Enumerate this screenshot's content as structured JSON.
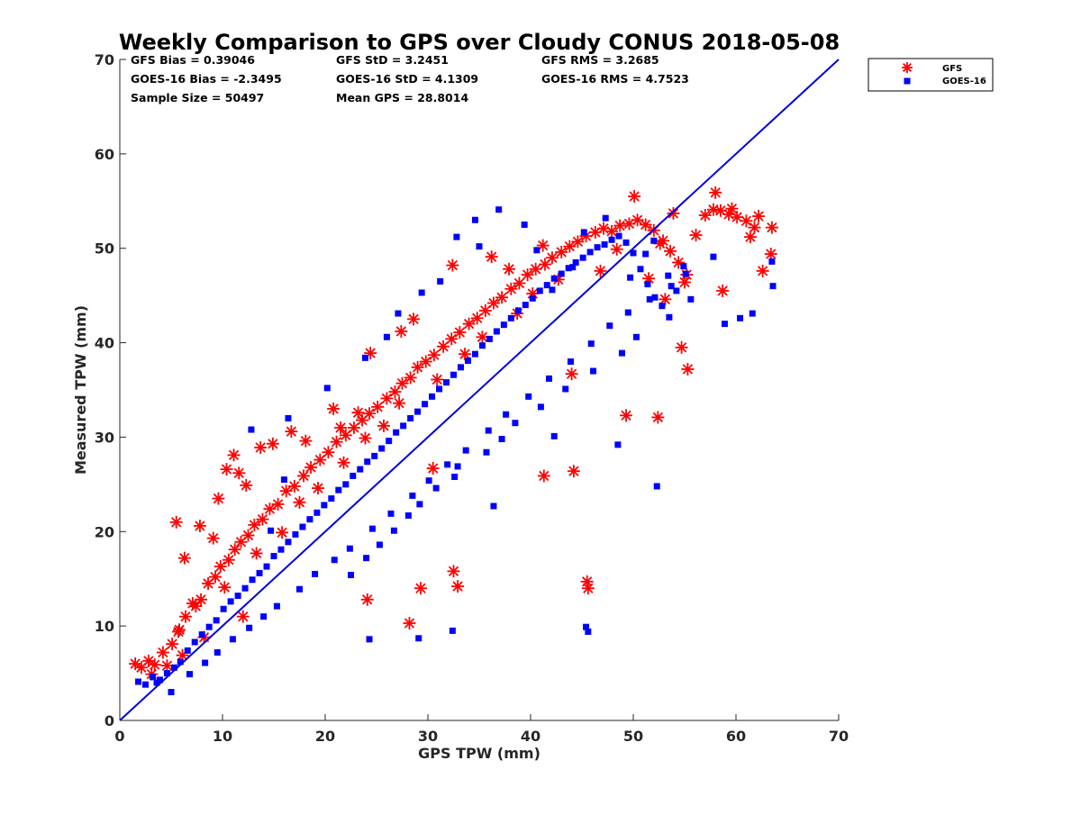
{
  "chart_data": {
    "type": "scatter",
    "title": "Weekly Comparison to GPS over Cloudy CONUS 2018-05-08",
    "xlabel": "GPS TPW (mm)",
    "ylabel": "Measured TPW (mm)",
    "xlim": [
      0,
      70
    ],
    "ylim": [
      0,
      70
    ],
    "xticks": [
      "0",
      "10",
      "20",
      "30",
      "40",
      "50",
      "60",
      "70"
    ],
    "yticks": [
      "0",
      "10",
      "20",
      "30",
      "40",
      "50",
      "60",
      "70"
    ],
    "grid": false,
    "legend_position": "outside top-right",
    "stats": [
      [
        "GFS Bias = 0.39046",
        "GFS StD = 3.2451",
        "GFS RMS = 3.2685"
      ],
      [
        "GOES-16 Bias = -2.3495",
        "GOES-16 StD = 4.1309",
        "GOES-16 RMS = 4.7523"
      ],
      [
        "Sample Size = 50497",
        "Mean GPS = 28.8014",
        ""
      ]
    ],
    "reference_line": {
      "x": [
        0,
        70
      ],
      "y": [
        0,
        70
      ],
      "color": "#0000dd"
    },
    "series": [
      {
        "name": "GFS",
        "marker": "asterisk",
        "color": "#ff0000",
        "x": [
          1.5,
          2.1,
          2.8,
          3.4,
          4.2,
          5.1,
          5.8,
          6.4,
          7.1,
          7.9,
          8.6,
          9.3,
          9.8,
          10.6,
          11.2,
          11.8,
          12.5,
          13.1,
          13.9,
          14.6,
          15.4,
          16.2,
          17.0,
          17.9,
          18.6,
          19.5,
          20.3,
          21.1,
          22.0,
          22.8,
          23.6,
          24.3,
          25.1,
          26.0,
          26.8,
          27.5,
          28.3,
          29.0,
          29.8,
          30.6,
          31.5,
          32.3,
          33.1,
          34.0,
          34.8,
          35.6,
          36.4,
          37.2,
          38.1,
          38.9,
          39.7,
          40.5,
          41.4,
          42.1,
          43.0,
          43.8,
          44.6,
          45.4,
          46.3,
          47.1,
          47.9,
          48.7,
          49.6,
          50.4,
          51.2,
          52.0,
          52.9,
          53.6,
          54.4,
          55.2,
          56.1,
          57.0,
          57.8,
          58.5,
          59.3,
          60.1,
          61.0,
          61.8,
          62.6,
          63.4,
          5.5,
          6.3,
          7.8,
          9.1,
          9.6,
          10.4,
          11.1,
          11.6,
          12.3,
          13.7,
          14.9,
          16.7,
          18.1,
          20.8,
          23.2,
          24.4,
          27.4,
          28.6,
          32.4,
          36.2,
          37.9,
          41.2,
          44.0,
          49.3,
          50.1,
          52.6,
          53.9,
          55.0,
          58.0,
          58.7,
          59.6,
          61.4,
          62.2,
          63.5,
          21.5,
          24.1,
          28.2,
          29.3,
          30.5,
          32.5,
          32.9,
          45.5,
          45.6,
          44.2,
          41.3,
          52.4,
          54.7,
          55.3,
          12.0,
          4.6,
          6.1,
          8.2,
          3.1,
          5.7,
          7.4,
          10.2,
          13.3,
          15.8,
          17.5,
          19.3,
          21.8,
          23.9,
          25.7,
          27.2,
          30.9,
          33.6,
          35.3,
          38.7,
          40.2,
          42.7,
          46.8,
          48.4,
          51.5,
          53.1
        ],
        "y": [
          6.0,
          5.6,
          6.3,
          5.9,
          7.2,
          8.1,
          9.6,
          11.0,
          12.4,
          12.8,
          14.5,
          15.2,
          16.3,
          17.0,
          18.1,
          18.9,
          19.6,
          20.7,
          21.3,
          22.4,
          22.9,
          24.3,
          24.8,
          25.9,
          26.8,
          27.6,
          28.4,
          29.5,
          30.2,
          31.0,
          31.8,
          32.5,
          33.2,
          34.1,
          34.8,
          35.7,
          36.3,
          37.4,
          38.0,
          38.7,
          39.6,
          40.4,
          41.1,
          42.0,
          42.6,
          43.4,
          44.2,
          44.8,
          45.7,
          46.3,
          47.2,
          47.8,
          48.3,
          49.0,
          49.6,
          50.2,
          50.7,
          51.3,
          51.7,
          52.1,
          51.8,
          52.4,
          52.6,
          53.0,
          52.5,
          51.9,
          50.8,
          49.7,
          48.5,
          47.2,
          51.4,
          53.5,
          54.1,
          54.0,
          53.6,
          53.3,
          52.9,
          52.2,
          47.6,
          49.4,
          21.0,
          17.2,
          20.6,
          19.3,
          23.5,
          26.6,
          28.1,
          26.2,
          24.9,
          28.9,
          29.3,
          30.6,
          29.6,
          33.0,
          32.6,
          38.9,
          41.2,
          42.5,
          48.2,
          49.1,
          47.8,
          50.3,
          36.7,
          32.3,
          55.5,
          50.5,
          53.7,
          46.4,
          55.9,
          45.5,
          54.2,
          51.2,
          53.4,
          52.2,
          31.0,
          12.8,
          10.3,
          14.0,
          26.7,
          15.8,
          14.2,
          14.7,
          14.0,
          26.4,
          25.9,
          32.1,
          39.5,
          37.2,
          11.0,
          5.8,
          6.9,
          8.8,
          4.9,
          9.4,
          12.1,
          14.1,
          17.7,
          19.9,
          23.1,
          24.6,
          27.3,
          29.9,
          31.2,
          33.6,
          36.1,
          38.8,
          40.6,
          43.1,
          45.2,
          46.7,
          47.6,
          49.9,
          46.8,
          44.6
        ]
      },
      {
        "name": "GOES-16",
        "marker": "square",
        "color": "#0000ff",
        "x": [
          1.8,
          2.5,
          3.2,
          3.9,
          4.6,
          5.3,
          5.9,
          6.6,
          7.3,
          8.0,
          8.7,
          9.4,
          10.1,
          10.8,
          11.5,
          12.2,
          12.9,
          13.6,
          14.3,
          15.0,
          15.7,
          16.4,
          17.1,
          17.8,
          18.5,
          19.2,
          19.9,
          20.6,
          21.3,
          22.0,
          22.7,
          23.4,
          24.1,
          24.8,
          25.5,
          26.2,
          26.9,
          27.6,
          28.3,
          29.0,
          29.7,
          30.4,
          31.1,
          31.8,
          32.5,
          33.2,
          33.9,
          34.6,
          35.3,
          36.0,
          36.7,
          37.4,
          38.1,
          38.8,
          39.5,
          40.2,
          40.9,
          41.6,
          42.3,
          43.0,
          43.7,
          44.4,
          45.1,
          45.8,
          46.5,
          47.2,
          47.9,
          48.6,
          49.3,
          50.0,
          50.7,
          51.4,
          52.1,
          52.8,
          53.5,
          54.2,
          54.9,
          55.6,
          57.8,
          58.9,
          60.4,
          61.6,
          63.5,
          63.6,
          12.8,
          16.4,
          16.0,
          14.7,
          20.2,
          23.9,
          26.0,
          27.1,
          29.4,
          31.2,
          32.8,
          34.6,
          35.0,
          36.9,
          39.4,
          40.6,
          42.1,
          44.1,
          45.2,
          47.3,
          49.7,
          51.2,
          52.0,
          53.4,
          22.5,
          24.0,
          25.3,
          26.7,
          28.1,
          29.2,
          30.8,
          32.6,
          32.9,
          35.7,
          37.2,
          38.5,
          41.0,
          43.4,
          46.1,
          48.9,
          50.3,
          24.3,
          29.1,
          32.4,
          45.6,
          45.4,
          52.3,
          48.5,
          42.3,
          36.4,
          3.6,
          5.0,
          6.8,
          8.3,
          9.5,
          11.0,
          12.6,
          14.0,
          15.3,
          17.5,
          19.0,
          20.9,
          22.4,
          24.6,
          26.4,
          28.5,
          30.1,
          31.9,
          33.7,
          35.9,
          37.6,
          39.8,
          41.8,
          43.9,
          45.9,
          47.7,
          49.5,
          51.6,
          53.7,
          55.1
        ],
        "y": [
          4.1,
          3.8,
          4.6,
          4.3,
          5.0,
          5.6,
          6.2,
          7.4,
          8.3,
          9.1,
          9.9,
          10.6,
          11.8,
          12.6,
          13.2,
          14.0,
          14.9,
          15.6,
          16.3,
          17.4,
          18.1,
          18.9,
          19.7,
          20.5,
          21.3,
          22.0,
          22.8,
          23.5,
          24.4,
          25.0,
          25.9,
          26.6,
          27.4,
          28.0,
          28.8,
          29.6,
          30.5,
          31.2,
          32.0,
          32.7,
          33.5,
          34.3,
          35.1,
          35.8,
          36.6,
          37.4,
          38.1,
          38.8,
          39.7,
          40.4,
          41.2,
          41.9,
          42.6,
          43.4,
          44.0,
          44.7,
          45.5,
          46.1,
          46.8,
          47.3,
          47.9,
          48.5,
          49.0,
          49.6,
          50.1,
          50.4,
          50.9,
          51.3,
          50.6,
          49.5,
          47.8,
          46.2,
          44.8,
          43.9,
          42.7,
          45.5,
          48.1,
          44.6,
          49.1,
          42.0,
          42.6,
          43.1,
          48.6,
          46.0,
          30.8,
          32.0,
          25.5,
          20.1,
          35.2,
          38.4,
          40.6,
          43.1,
          45.3,
          46.5,
          51.2,
          53.0,
          50.2,
          54.1,
          52.5,
          49.8,
          45.6,
          48.0,
          51.7,
          53.2,
          46.9,
          49.4,
          50.8,
          47.1,
          15.4,
          17.2,
          18.6,
          20.1,
          21.7,
          22.9,
          24.6,
          25.8,
          26.9,
          28.4,
          29.8,
          31.5,
          33.2,
          35.1,
          37.0,
          38.9,
          40.6,
          8.6,
          8.7,
          9.5,
          9.4,
          9.9,
          24.8,
          29.2,
          30.1,
          22.7,
          4.0,
          3.0,
          4.9,
          6.1,
          7.2,
          8.6,
          9.8,
          11.0,
          12.1,
          13.9,
          15.5,
          17.0,
          18.2,
          20.3,
          21.9,
          23.8,
          25.4,
          27.1,
          28.6,
          30.7,
          32.4,
          34.3,
          36.2,
          38.0,
          39.9,
          41.8,
          43.2,
          44.6,
          46.0,
          47.3
        ]
      }
    ]
  }
}
